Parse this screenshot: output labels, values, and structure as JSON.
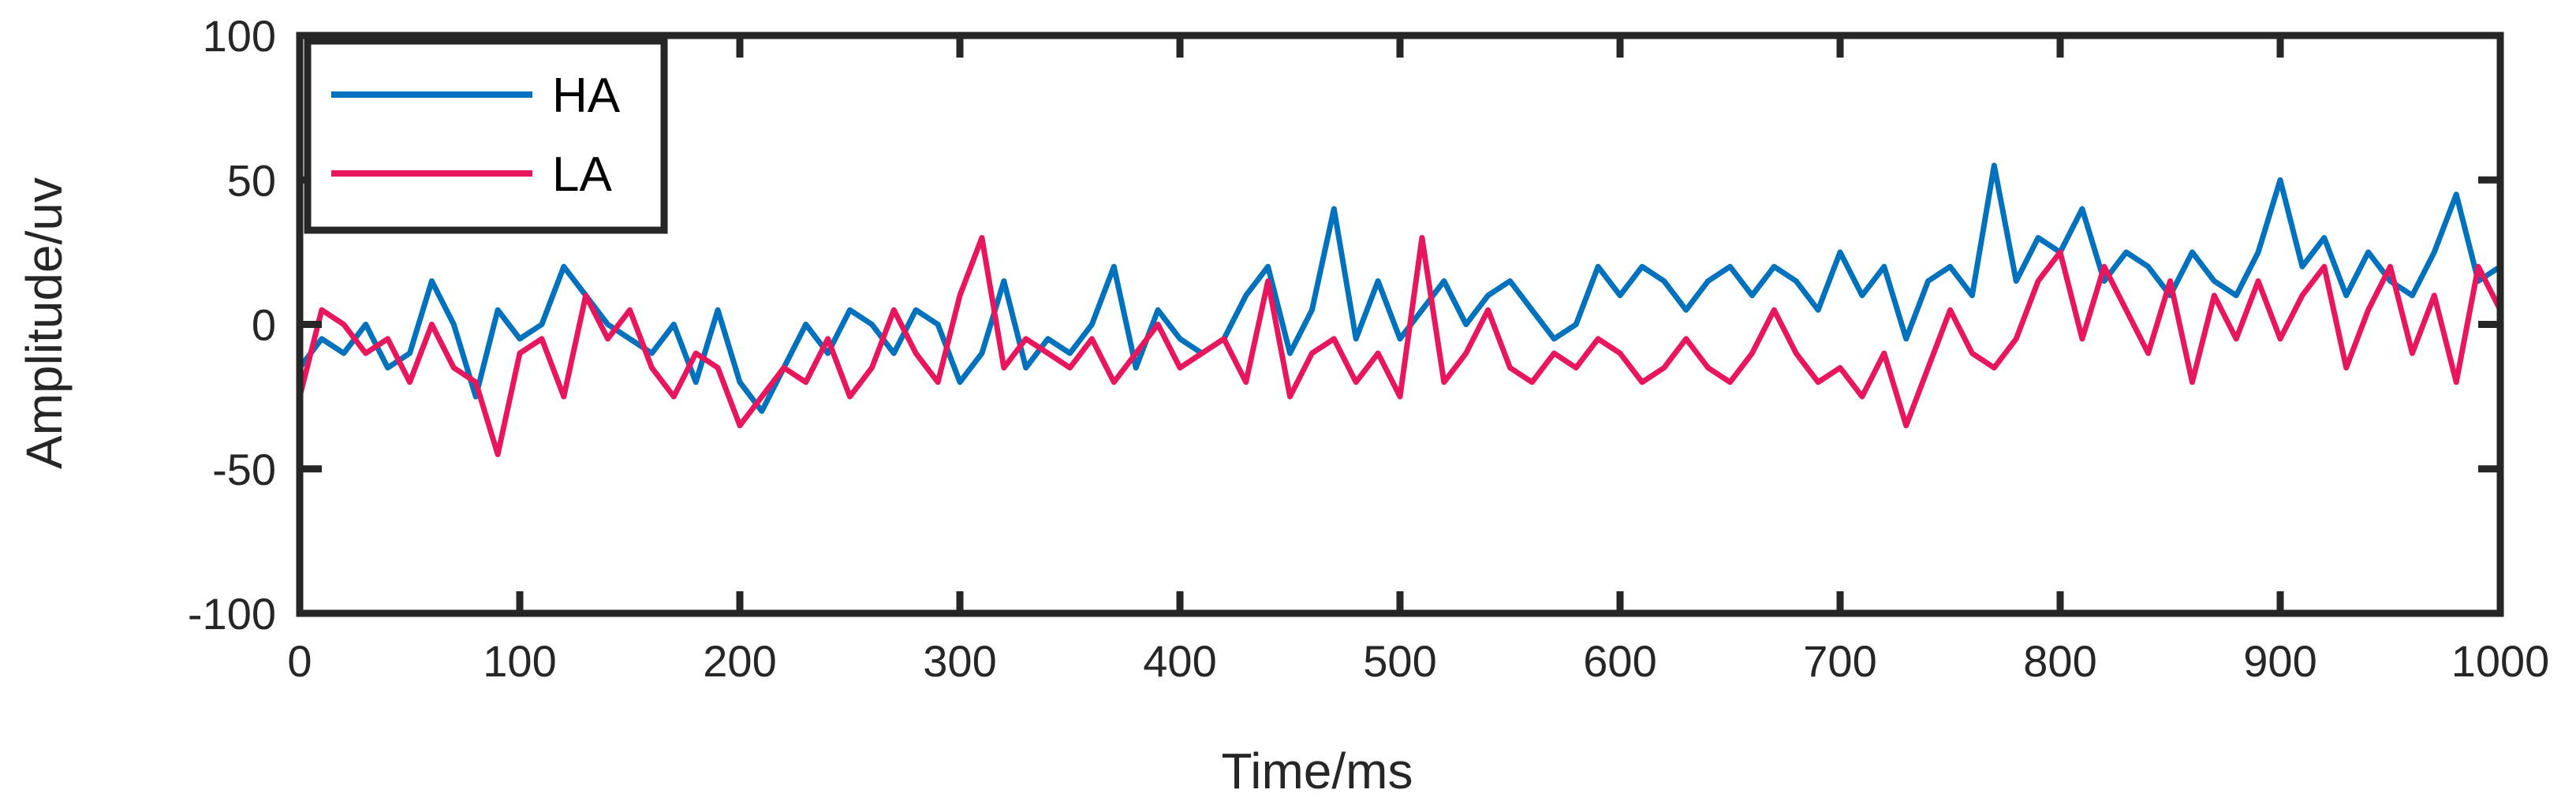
{
  "chart_data": {
    "type": "line",
    "title": "",
    "xlabel": "Time/ms",
    "ylabel": "Amplitude/uv",
    "xlim": [
      0,
      1000
    ],
    "ylim": [
      -100,
      100
    ],
    "xticks": [
      "0",
      "100",
      "200",
      "300",
      "400",
      "500",
      "600",
      "700",
      "800",
      "900",
      "1000"
    ],
    "yticks": [
      "100",
      "50",
      "0",
      "-50",
      "-100"
    ],
    "grid": false,
    "legend_position": "top-left",
    "series": [
      {
        "name": "HA",
        "color": "#0072BD",
        "x": [
          0,
          10,
          20,
          30,
          40,
          50,
          60,
          70,
          80,
          90,
          100,
          110,
          120,
          130,
          140,
          150,
          160,
          170,
          180,
          190,
          200,
          210,
          220,
          230,
          240,
          250,
          260,
          270,
          280,
          290,
          300,
          310,
          320,
          330,
          340,
          350,
          360,
          370,
          380,
          390,
          400,
          410,
          420,
          430,
          440,
          450,
          460,
          470,
          480,
          490,
          500,
          510,
          520,
          530,
          540,
          550,
          560,
          570,
          580,
          590,
          600,
          610,
          620,
          630,
          640,
          650,
          660,
          670,
          680,
          690,
          700,
          710,
          720,
          730,
          740,
          750,
          760,
          770,
          780,
          790,
          800,
          810,
          820,
          830,
          840,
          850,
          860,
          870,
          880,
          890,
          900,
          910,
          920,
          930,
          940,
          950,
          960,
          970,
          980,
          990,
          1000
        ],
        "values": [
          -15,
          -5,
          -10,
          0,
          -15,
          -10,
          15,
          0,
          -25,
          5,
          -5,
          0,
          20,
          10,
          0,
          -5,
          -10,
          0,
          -20,
          5,
          -20,
          -30,
          -15,
          0,
          -10,
          5,
          0,
          -10,
          5,
          0,
          -20,
          -10,
          15,
          -15,
          -5,
          -10,
          0,
          20,
          -15,
          5,
          -5,
          -10,
          -5,
          10,
          20,
          -10,
          5,
          40,
          -5,
          15,
          -5,
          5,
          15,
          0,
          10,
          15,
          5,
          -5,
          0,
          20,
          10,
          20,
          15,
          5,
          15,
          20,
          10,
          20,
          15,
          5,
          25,
          10,
          20,
          -5,
          15,
          20,
          10,
          55,
          15,
          30,
          25,
          40,
          15,
          25,
          20,
          10,
          25,
          15,
          10,
          25,
          50,
          20,
          30,
          10,
          25,
          15,
          10,
          25,
          45,
          15,
          20
        ]
      },
      {
        "name": "LA",
        "color": "#E8175D",
        "x": [
          0,
          10,
          20,
          30,
          40,
          50,
          60,
          70,
          80,
          90,
          100,
          110,
          120,
          130,
          140,
          150,
          160,
          170,
          180,
          190,
          200,
          210,
          220,
          230,
          240,
          250,
          260,
          270,
          280,
          290,
          300,
          310,
          320,
          330,
          340,
          350,
          360,
          370,
          380,
          390,
          400,
          410,
          420,
          430,
          440,
          450,
          460,
          470,
          480,
          490,
          500,
          510,
          520,
          530,
          540,
          550,
          560,
          570,
          580,
          590,
          600,
          610,
          620,
          630,
          640,
          650,
          660,
          670,
          680,
          690,
          700,
          710,
          720,
          730,
          740,
          750,
          760,
          770,
          780,
          790,
          800,
          810,
          820,
          830,
          840,
          850,
          860,
          870,
          880,
          890,
          900,
          910,
          920,
          930,
          940,
          950,
          960,
          970,
          980,
          990,
          1000
        ],
        "values": [
          -25,
          5,
          0,
          -10,
          -5,
          -20,
          0,
          -15,
          -20,
          -45,
          -10,
          -5,
          -25,
          10,
          -5,
          5,
          -15,
          -25,
          -10,
          -15,
          -35,
          -25,
          -15,
          -20,
          -5,
          -25,
          -15,
          5,
          -10,
          -20,
          10,
          30,
          -15,
          -5,
          -10,
          -15,
          -5,
          -20,
          -10,
          0,
          -15,
          -10,
          -5,
          -20,
          15,
          -25,
          -10,
          -5,
          -20,
          -10,
          -25,
          30,
          -20,
          -10,
          5,
          -15,
          -20,
          -10,
          -15,
          -5,
          -10,
          -20,
          -15,
          -5,
          -15,
          -20,
          -10,
          5,
          -10,
          -20,
          -15,
          -25,
          -10,
          -35,
          -15,
          5,
          -10,
          -15,
          -5,
          15,
          25,
          -5,
          20,
          5,
          -10,
          15,
          -20,
          10,
          -5,
          15,
          -5,
          10,
          20,
          -15,
          5,
          20,
          -10,
          10,
          -20,
          20,
          5
        ]
      }
    ]
  }
}
